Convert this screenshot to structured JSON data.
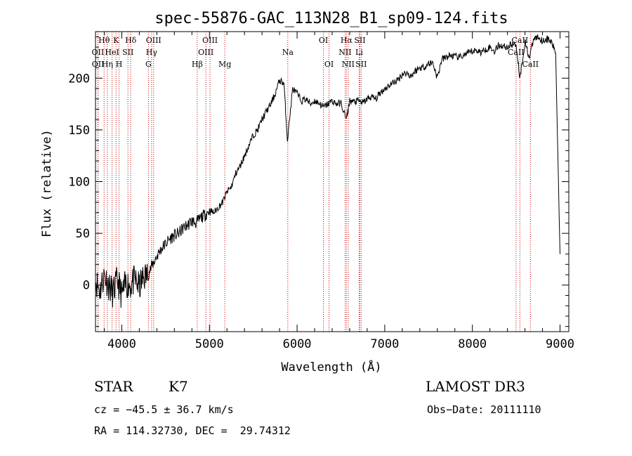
{
  "chart_data": {
    "type": "line",
    "title": "spec-55876-GAC_113N28_B1_sp09-124.fits",
    "xlabel": "Wavelength (Å)",
    "ylabel": "Flux (relative)",
    "xlim": [
      3700,
      9100
    ],
    "ylim": [
      -45,
      245
    ],
    "xticks": [
      4000,
      5000,
      6000,
      7000,
      8000,
      9000
    ],
    "yticks": [
      0,
      50,
      100,
      150,
      200
    ],
    "grid": false,
    "line_color": "#000000",
    "marker_color": "#cc0000",
    "series": [
      {
        "x": [
          3700,
          3750,
          3800,
          3850,
          3900,
          3950,
          4000,
          4050,
          4100,
          4150,
          4200,
          4250,
          4300,
          4350,
          4400,
          4450,
          4500,
          4550,
          4600,
          4650,
          4700,
          4750,
          4800,
          4850,
          4900,
          4950,
          5000,
          5050,
          5100,
          5150,
          5200,
          5250,
          5300,
          5350,
          5400,
          5450,
          5500,
          5550,
          5600,
          5650,
          5700,
          5750,
          5800,
          5850,
          5890,
          5950,
          6000,
          6050,
          6100,
          6150,
          6200,
          6250,
          6300,
          6350,
          6400,
          6450,
          6500,
          6563,
          6600,
          6650,
          6700,
          6750,
          6800,
          6850,
          6900,
          6950,
          7000,
          7050,
          7100,
          7150,
          7200,
          7250,
          7300,
          7350,
          7400,
          7450,
          7500,
          7550,
          7600,
          7650,
          7700,
          7750,
          7800,
          7850,
          7900,
          7950,
          8000,
          8050,
          8100,
          8150,
          8200,
          8250,
          8300,
          8350,
          8400,
          8450,
          8500,
          8542,
          8600,
          8650,
          8700,
          8750,
          8800,
          8850,
          8900,
          8950,
          9000
        ],
        "y": [
          5,
          -5,
          10,
          0,
          -8,
          5,
          -10,
          2,
          0,
          5,
          -2,
          8,
          10,
          20,
          28,
          35,
          40,
          45,
          48,
          50,
          55,
          58,
          62,
          60,
          65,
          68,
          72,
          70,
          75,
          80,
          90,
          95,
          108,
          115,
          125,
          135,
          145,
          150,
          160,
          168,
          175,
          185,
          198,
          195,
          140,
          190,
          185,
          178,
          180,
          175,
          178,
          176,
          172,
          175,
          178,
          175,
          176,
          160,
          178,
          177,
          178,
          176,
          180,
          182,
          180,
          186,
          190,
          193,
          196,
          198,
          204,
          205,
          202,
          207,
          210,
          211,
          214,
          215,
          200,
          218,
          220,
          222,
          221,
          220,
          222,
          224,
          226,
          227,
          225,
          228,
          230,
          226,
          232,
          231,
          230,
          233,
          232,
          200,
          235,
          220,
          238,
          240,
          236,
          238,
          235,
          225,
          30
        ]
      }
    ],
    "lines": [
      {
        "name": "Hθ",
        "x": 3798
      },
      {
        "name": "OII",
        "x": 3727
      },
      {
        "name": "OII",
        "x": 3729
      },
      {
        "name": "K",
        "x": 3934
      },
      {
        "name": "HeI",
        "x": 3889
      },
      {
        "name": "Hη",
        "x": 3835
      },
      {
        "name": "H",
        "x": 3969
      },
      {
        "name": "SII",
        "x": 4070
      },
      {
        "name": "Hδ",
        "x": 4102
      },
      {
        "name": "OIII",
        "x": 4363
      },
      {
        "name": "Hγ",
        "x": 4340
      },
      {
        "name": "G",
        "x": 4304
      },
      {
        "name": "Hβ",
        "x": 4861
      },
      {
        "name": "OIII",
        "x": 4959
      },
      {
        "name": "OIII",
        "x": 5007
      },
      {
        "name": "Mg",
        "x": 5175
      },
      {
        "name": "Na",
        "x": 5894
      },
      {
        "name": "OI",
        "x": 6300
      },
      {
        "name": "OI",
        "x": 6364
      },
      {
        "name": "Hα",
        "x": 6563
      },
      {
        "name": "NII",
        "x": 6548
      },
      {
        "name": "NII",
        "x": 6583
      },
      {
        "name": "SII",
        "x": 6716
      },
      {
        "name": "Li",
        "x": 6708
      },
      {
        "name": "SII",
        "x": 6731
      },
      {
        "name": "CaII",
        "x": 8498
      },
      {
        "name": "CaII",
        "x": 8542
      },
      {
        "name": "CaII",
        "x": 8662
      }
    ],
    "line_label_texts": [
      {
        "text": "Hθ",
        "x": 3798,
        "row": 0
      },
      {
        "text": "K",
        "x": 3934,
        "row": 0
      },
      {
        "text": "Hδ",
        "x": 4102,
        "row": 0
      },
      {
        "text": "OIII",
        "x": 4363,
        "row": 0
      },
      {
        "text": "OIII",
        "x": 5007,
        "row": 0
      },
      {
        "text": "OI",
        "x": 6300,
        "row": 0
      },
      {
        "text": "Hα",
        "x": 6563,
        "row": 0
      },
      {
        "text": "SII",
        "x": 6716,
        "row": 0
      },
      {
        "text": "CaII",
        "x": 8542,
        "row": 0
      },
      {
        "text": "OII",
        "x": 3727,
        "row": 1
      },
      {
        "text": "HeI",
        "x": 3889,
        "row": 1
      },
      {
        "text": "SII",
        "x": 4070,
        "row": 1
      },
      {
        "text": "Hγ",
        "x": 4340,
        "row": 1
      },
      {
        "text": "OIII",
        "x": 4959,
        "row": 1
      },
      {
        "text": "Na",
        "x": 5894,
        "row": 1
      },
      {
        "text": "NII",
        "x": 6548,
        "row": 1
      },
      {
        "text": "Li",
        "x": 6708,
        "row": 1
      },
      {
        "text": "CaII",
        "x": 8498,
        "row": 1
      },
      {
        "text": "OII",
        "x": 3729,
        "row": 2
      },
      {
        "text": "Hη",
        "x": 3835,
        "row": 2
      },
      {
        "text": "H",
        "x": 3969,
        "row": 2
      },
      {
        "text": "G",
        "x": 4304,
        "row": 2
      },
      {
        "text": "Hβ",
        "x": 4861,
        "row": 2
      },
      {
        "text": "Mg",
        "x": 5175,
        "row": 2
      },
      {
        "text": "OI",
        "x": 6364,
        "row": 2
      },
      {
        "text": "NII",
        "x": 6583,
        "row": 2
      },
      {
        "text": "SII",
        "x": 6731,
        "row": 2
      },
      {
        "text": "CaII",
        "x": 8662,
        "row": 2
      }
    ]
  },
  "info": {
    "class": "STAR",
    "subclass": "K7",
    "survey": "LAMOST DR3",
    "cz": "cz = −45.5 ± 36.7 km/s",
    "obs_date": "Obs−Date: 20111110",
    "coords": "RA = 114.32730, DEC =  29.74312"
  }
}
